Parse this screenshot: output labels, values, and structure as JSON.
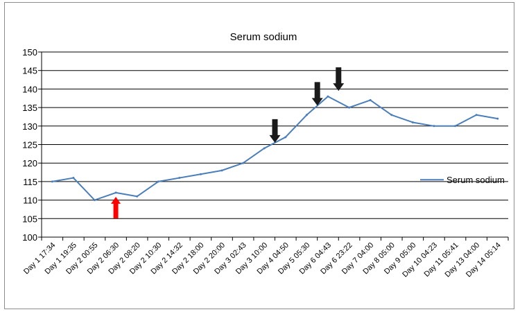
{
  "chart_data": {
    "type": "line",
    "title": "Serum sodium",
    "xlabel": "",
    "ylabel": "",
    "ylim": [
      100,
      150
    ],
    "yticks": [
      100,
      105,
      110,
      115,
      120,
      125,
      130,
      135,
      140,
      145,
      150
    ],
    "grid": true,
    "legend_position": "right",
    "categories": [
      "Day 1 17:34",
      "Day 1 19:35",
      "Day 2 00:55",
      "Day 2 06:30",
      "Day 2 08:20",
      "Day 2 10:30",
      "Day 2 14:32",
      "Day 2 18:00",
      "Day 2 20:00",
      "Day 3 02:43",
      "Day 3 10:00",
      "Day 4 04:50",
      "Day 5 05:30",
      "Day 6 04:43",
      "Day 6 23:22",
      "Day 7 04:00",
      "Day 8 05:00",
      "Day 9 05:00",
      "Day 10 04:23",
      "Day 11 05:41",
      "Day 13 04:00",
      "Day 14 05:14"
    ],
    "series": [
      {
        "name": "Serum sodium",
        "color": "#4a7ebb",
        "values": [
          115,
          116,
          110,
          112,
          111,
          115,
          116,
          117,
          118,
          120,
          124,
          127,
          133,
          138,
          135,
          137,
          133,
          131,
          130,
          130,
          133,
          132
        ]
      }
    ],
    "annotations": [
      {
        "type": "arrow-up",
        "color": "#ff0000",
        "x_index": 3,
        "y_value": 112
      },
      {
        "type": "arrow-down",
        "color": "#1a1a1a",
        "x_index": 10.5,
        "y_value": 125.5
      },
      {
        "type": "arrow-down",
        "color": "#1a1a1a",
        "x_index": 12.5,
        "y_value": 135.5
      },
      {
        "type": "arrow-down",
        "color": "#1a1a1a",
        "x_index": 13.5,
        "y_value": 139.5
      }
    ]
  }
}
